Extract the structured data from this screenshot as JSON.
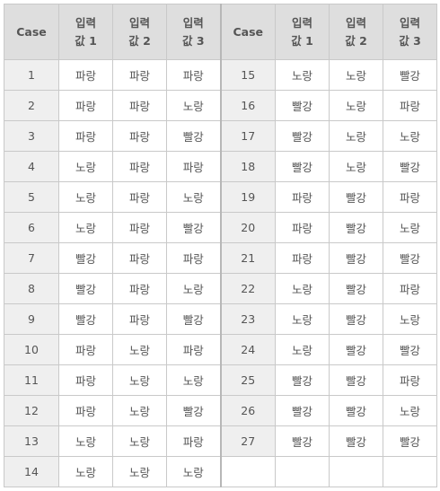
{
  "table": {
    "headers": {
      "case": "Case",
      "input_line1": "입력",
      "input_suffixes": [
        "값 1",
        "값 2",
        "값 3"
      ]
    },
    "rows": [
      {
        "case": "1",
        "values": [
          "파랑",
          "파랑",
          "파랑"
        ]
      },
      {
        "case": "2",
        "values": [
          "파랑",
          "파랑",
          "노랑"
        ]
      },
      {
        "case": "3",
        "values": [
          "파랑",
          "파랑",
          "빨강"
        ]
      },
      {
        "case": "4",
        "values": [
          "노랑",
          "파랑",
          "파랑"
        ]
      },
      {
        "case": "5",
        "values": [
          "노랑",
          "파랑",
          "노랑"
        ]
      },
      {
        "case": "6",
        "values": [
          "노랑",
          "파랑",
          "빨강"
        ]
      },
      {
        "case": "7",
        "values": [
          "빨강",
          "파랑",
          "파랑"
        ]
      },
      {
        "case": "8",
        "values": [
          "빨강",
          "파랑",
          "노랑"
        ]
      },
      {
        "case": "9",
        "values": [
          "빨강",
          "파랑",
          "빨강"
        ]
      },
      {
        "case": "10",
        "values": [
          "파랑",
          "노랑",
          "파랑"
        ]
      },
      {
        "case": "11",
        "values": [
          "파랑",
          "노랑",
          "노랑"
        ]
      },
      {
        "case": "12",
        "values": [
          "파랑",
          "노랑",
          "빨강"
        ]
      },
      {
        "case": "13",
        "values": [
          "노랑",
          "노랑",
          "파랑"
        ]
      },
      {
        "case": "14",
        "values": [
          "노랑",
          "노랑",
          "노랑"
        ]
      },
      {
        "case": "15",
        "values": [
          "노랑",
          "노랑",
          "빨강"
        ]
      },
      {
        "case": "16",
        "values": [
          "빨강",
          "노랑",
          "파랑"
        ]
      },
      {
        "case": "17",
        "values": [
          "빨강",
          "노랑",
          "노랑"
        ]
      },
      {
        "case": "18",
        "values": [
          "빨강",
          "노랑",
          "빨강"
        ]
      },
      {
        "case": "19",
        "values": [
          "파랑",
          "빨강",
          "파랑"
        ]
      },
      {
        "case": "20",
        "values": [
          "파랑",
          "빨강",
          "노랑"
        ]
      },
      {
        "case": "21",
        "values": [
          "파랑",
          "빨강",
          "빨강"
        ]
      },
      {
        "case": "22",
        "values": [
          "노랑",
          "빨강",
          "파랑"
        ]
      },
      {
        "case": "23",
        "values": [
          "노랑",
          "빨강",
          "노랑"
        ]
      },
      {
        "case": "24",
        "values": [
          "노랑",
          "빨강",
          "빨강"
        ]
      },
      {
        "case": "25",
        "values": [
          "빨강",
          "빨강",
          "파랑"
        ]
      },
      {
        "case": "26",
        "values": [
          "빨강",
          "빨강",
          "노랑"
        ]
      },
      {
        "case": "27",
        "values": [
          "빨강",
          "빨강",
          "빨강"
        ]
      }
    ]
  },
  "colors": {
    "header_bg": "#dedede",
    "case_bg": "#efefef",
    "border": "#c9c9c9",
    "text": "#555555"
  }
}
